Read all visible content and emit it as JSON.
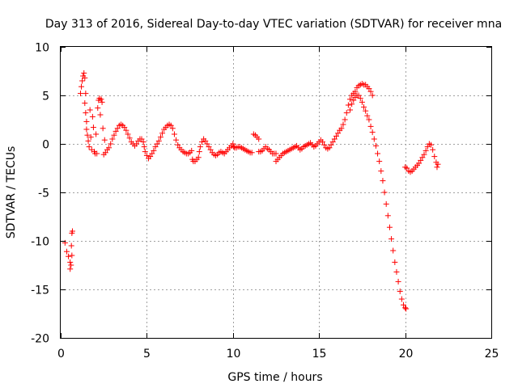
{
  "chart_data": {
    "type": "scatter",
    "title": "Day 313 of 2016, Sidereal Day-to-day VTEC variation (SDTVAR) for receiver mna",
    "xlabel": "GPS time / hours",
    "ylabel": "SDTVAR / TECUs",
    "xlim": [
      0,
      25
    ],
    "ylim": [
      -20,
      10
    ],
    "xticks": [
      0,
      5,
      10,
      15,
      20,
      25
    ],
    "yticks": [
      -20,
      -15,
      -10,
      -5,
      0,
      5,
      10
    ],
    "grid": true,
    "marker": "+",
    "color": "#ff0000",
    "series": [
      {
        "name": "SDTVAR",
        "points": [
          [
            0.25,
            -10.2
          ],
          [
            0.35,
            -11.1
          ],
          [
            0.45,
            -11.6
          ],
          [
            0.55,
            -12.2
          ],
          [
            0.55,
            -12.9
          ],
          [
            0.6,
            -12.5
          ],
          [
            0.62,
            -10.5
          ],
          [
            0.65,
            -11.5
          ],
          [
            0.65,
            -9.2
          ],
          [
            0.68,
            -9.0
          ],
          [
            1.15,
            5.2
          ],
          [
            1.2,
            5.9
          ],
          [
            1.25,
            6.5
          ],
          [
            1.3,
            7.0
          ],
          [
            1.35,
            7.3
          ],
          [
            1.4,
            6.8
          ],
          [
            1.4,
            4.2
          ],
          [
            1.45,
            5.2
          ],
          [
            1.45,
            3.2
          ],
          [
            1.5,
            2.3
          ],
          [
            1.5,
            1.5
          ],
          [
            1.55,
            0.9
          ],
          [
            1.6,
            0.3
          ],
          [
            1.65,
            -0.3
          ],
          [
            1.7,
            3.5
          ],
          [
            1.75,
            0.7
          ],
          [
            1.8,
            -0.6
          ],
          [
            1.85,
            2.8
          ],
          [
            1.9,
            1.7
          ],
          [
            1.95,
            -0.8
          ],
          [
            2.0,
            -1.0
          ],
          [
            2.05,
            1.0
          ],
          [
            2.1,
            -1.0
          ],
          [
            2.15,
            3.7
          ],
          [
            2.2,
            4.5
          ],
          [
            2.25,
            4.7
          ],
          [
            2.3,
            3.0
          ],
          [
            2.35,
            4.6
          ],
          [
            2.4,
            4.3
          ],
          [
            2.45,
            1.6
          ],
          [
            2.5,
            -1.1
          ],
          [
            2.55,
            0.4
          ],
          [
            2.6,
            -0.9
          ],
          [
            2.7,
            -0.6
          ],
          [
            2.8,
            -0.4
          ],
          [
            2.9,
            0.0
          ],
          [
            3.0,
            0.5
          ],
          [
            3.1,
            0.9
          ],
          [
            3.2,
            1.3
          ],
          [
            3.3,
            1.6
          ],
          [
            3.4,
            1.9
          ],
          [
            3.5,
            2.0
          ],
          [
            3.6,
            1.9
          ],
          [
            3.7,
            1.7
          ],
          [
            3.8,
            1.4
          ],
          [
            3.9,
            1.0
          ],
          [
            4.0,
            0.6
          ],
          [
            4.1,
            0.2
          ],
          [
            4.2,
            0.0
          ],
          [
            4.3,
            -0.2
          ],
          [
            4.4,
            0.0
          ],
          [
            4.5,
            0.3
          ],
          [
            4.6,
            0.5
          ],
          [
            4.7,
            0.5
          ],
          [
            4.8,
            0.2
          ],
          [
            4.85,
            -0.3
          ],
          [
            4.9,
            -0.8
          ],
          [
            5.0,
            -1.2
          ],
          [
            5.1,
            -1.5
          ],
          [
            5.2,
            -1.3
          ],
          [
            5.3,
            -1.0
          ],
          [
            5.4,
            -0.7
          ],
          [
            5.5,
            -0.3
          ],
          [
            5.6,
            0.0
          ],
          [
            5.7,
            0.3
          ],
          [
            5.8,
            0.7
          ],
          [
            5.9,
            1.1
          ],
          [
            6.0,
            1.5
          ],
          [
            6.1,
            1.7
          ],
          [
            6.2,
            1.9
          ],
          [
            6.3,
            2.0
          ],
          [
            6.4,
            1.9
          ],
          [
            6.5,
            1.6
          ],
          [
            6.6,
            1.0
          ],
          [
            6.7,
            0.4
          ],
          [
            6.8,
            -0.1
          ],
          [
            6.9,
            -0.4
          ],
          [
            7.0,
            -0.6
          ],
          [
            7.1,
            -0.8
          ],
          [
            7.2,
            -0.9
          ],
          [
            7.3,
            -1.0
          ],
          [
            7.4,
            -1.0
          ],
          [
            7.5,
            -0.9
          ],
          [
            7.6,
            -0.7
          ],
          [
            7.65,
            -1.6
          ],
          [
            7.7,
            -1.8
          ],
          [
            7.8,
            -1.8
          ],
          [
            7.9,
            -1.6
          ],
          [
            8.0,
            -1.4
          ],
          [
            8.05,
            -0.8
          ],
          [
            8.1,
            -0.3
          ],
          [
            8.2,
            0.2
          ],
          [
            8.3,
            0.5
          ],
          [
            8.4,
            0.3
          ],
          [
            8.5,
            0.0
          ],
          [
            8.6,
            -0.3
          ],
          [
            8.7,
            -0.6
          ],
          [
            8.8,
            -0.9
          ],
          [
            8.9,
            -1.1
          ],
          [
            9.0,
            -1.2
          ],
          [
            9.1,
            -1.1
          ],
          [
            9.2,
            -0.9
          ],
          [
            9.3,
            -0.8
          ],
          [
            9.4,
            -0.9
          ],
          [
            9.5,
            -1.0
          ],
          [
            9.6,
            -0.8
          ],
          [
            9.7,
            -0.6
          ],
          [
            9.8,
            -0.4
          ],
          [
            9.9,
            -0.2
          ],
          [
            10.0,
            0.0
          ],
          [
            10.05,
            -0.3
          ],
          [
            10.1,
            -0.4
          ],
          [
            10.2,
            -0.4
          ],
          [
            10.3,
            -0.3
          ],
          [
            10.4,
            -0.3
          ],
          [
            10.5,
            -0.4
          ],
          [
            10.6,
            -0.5
          ],
          [
            10.7,
            -0.6
          ],
          [
            10.8,
            -0.7
          ],
          [
            10.9,
            -0.8
          ],
          [
            11.0,
            -0.9
          ],
          [
            11.1,
            -0.9
          ],
          [
            11.2,
            1.0
          ],
          [
            11.3,
            0.9
          ],
          [
            11.4,
            0.7
          ],
          [
            11.5,
            0.5
          ],
          [
            11.5,
            -0.8
          ],
          [
            11.6,
            -0.8
          ],
          [
            11.7,
            -0.7
          ],
          [
            11.8,
            -0.5
          ],
          [
            11.9,
            -0.3
          ],
          [
            12.0,
            -0.5
          ],
          [
            12.1,
            -0.6
          ],
          [
            12.2,
            -0.8
          ],
          [
            12.3,
            -1.0
          ],
          [
            12.4,
            -1.0
          ],
          [
            12.5,
            -1.0
          ],
          [
            12.5,
            -1.8
          ],
          [
            12.6,
            -1.6
          ],
          [
            12.7,
            -1.4
          ],
          [
            12.8,
            -1.2
          ],
          [
            12.9,
            -1.0
          ],
          [
            13.0,
            -0.9
          ],
          [
            13.1,
            -0.8
          ],
          [
            13.2,
            -0.7
          ],
          [
            13.3,
            -0.6
          ],
          [
            13.4,
            -0.5
          ],
          [
            13.5,
            -0.4
          ],
          [
            13.6,
            -0.3
          ],
          [
            13.7,
            -0.2
          ],
          [
            13.8,
            -0.4
          ],
          [
            13.9,
            -0.6
          ],
          [
            14.0,
            -0.5
          ],
          [
            14.1,
            -0.3
          ],
          [
            14.2,
            -0.2
          ],
          [
            14.3,
            -0.1
          ],
          [
            14.4,
            0.0
          ],
          [
            14.5,
            0.1
          ],
          [
            14.6,
            -0.1
          ],
          [
            14.7,
            -0.3
          ],
          [
            14.8,
            -0.2
          ],
          [
            14.9,
            0.0
          ],
          [
            15.0,
            0.2
          ],
          [
            15.1,
            0.4
          ],
          [
            15.2,
            0.2
          ],
          [
            15.3,
            -0.1
          ],
          [
            15.4,
            -0.4
          ],
          [
            15.5,
            -0.5
          ],
          [
            15.6,
            -0.4
          ],
          [
            15.7,
            -0.1
          ],
          [
            15.8,
            0.2
          ],
          [
            15.9,
            0.5
          ],
          [
            16.0,
            0.8
          ],
          [
            16.1,
            1.1
          ],
          [
            16.2,
            1.4
          ],
          [
            16.3,
            1.6
          ],
          [
            16.4,
            2.0
          ],
          [
            16.5,
            2.5
          ],
          [
            16.6,
            3.2
          ],
          [
            16.7,
            4.0
          ],
          [
            16.8,
            4.6
          ],
          [
            16.8,
            3.5
          ],
          [
            16.9,
            5.0
          ],
          [
            16.9,
            4.1
          ],
          [
            17.0,
            5.2
          ],
          [
            17.0,
            4.5
          ],
          [
            17.1,
            5.4
          ],
          [
            17.1,
            4.8
          ],
          [
            17.2,
            5.8
          ],
          [
            17.2,
            5.0
          ],
          [
            17.3,
            6.0
          ],
          [
            17.3,
            5.0
          ],
          [
            17.4,
            6.1
          ],
          [
            17.4,
            4.7
          ],
          [
            17.5,
            6.2
          ],
          [
            17.5,
            4.3
          ],
          [
            17.6,
            6.1
          ],
          [
            17.6,
            3.8
          ],
          [
            17.7,
            6.1
          ],
          [
            17.7,
            3.4
          ],
          [
            17.8,
            5.9
          ],
          [
            17.8,
            2.9
          ],
          [
            17.9,
            5.7
          ],
          [
            17.9,
            2.5
          ],
          [
            18.0,
            5.4
          ],
          [
            18.0,
            1.8
          ],
          [
            18.1,
            5.0
          ],
          [
            18.1,
            1.2
          ],
          [
            18.2,
            0.5
          ],
          [
            18.3,
            -0.2
          ],
          [
            18.4,
            -1.0
          ],
          [
            18.5,
            -1.8
          ],
          [
            18.6,
            -2.8
          ],
          [
            18.7,
            -3.8
          ],
          [
            18.8,
            -5.0
          ],
          [
            18.9,
            -6.2
          ],
          [
            19.0,
            -7.4
          ],
          [
            19.1,
            -8.6
          ],
          [
            19.2,
            -9.8
          ],
          [
            19.3,
            -11.0
          ],
          [
            19.4,
            -12.2
          ],
          [
            19.5,
            -13.2
          ],
          [
            19.6,
            -14.2
          ],
          [
            19.7,
            -15.2
          ],
          [
            19.8,
            -16.0
          ],
          [
            19.9,
            -16.6
          ],
          [
            20.0,
            -16.9
          ],
          [
            20.05,
            -17.0
          ],
          [
            20.0,
            -2.4
          ],
          [
            20.1,
            -2.5
          ],
          [
            20.2,
            -2.8
          ],
          [
            20.3,
            -2.9
          ],
          [
            20.4,
            -2.8
          ],
          [
            20.5,
            -2.6
          ],
          [
            20.6,
            -2.4
          ],
          [
            20.7,
            -2.2
          ],
          [
            20.8,
            -2.0
          ],
          [
            20.9,
            -1.7
          ],
          [
            21.0,
            -1.4
          ],
          [
            21.1,
            -1.1
          ],
          [
            21.2,
            -0.7
          ],
          [
            21.3,
            -0.3
          ],
          [
            21.4,
            0.0
          ],
          [
            21.5,
            -0.1
          ],
          [
            21.6,
            -0.6
          ],
          [
            21.7,
            -1.3
          ],
          [
            21.8,
            -1.9
          ],
          [
            21.85,
            -2.4
          ],
          [
            21.9,
            -2.1
          ]
        ]
      }
    ]
  }
}
